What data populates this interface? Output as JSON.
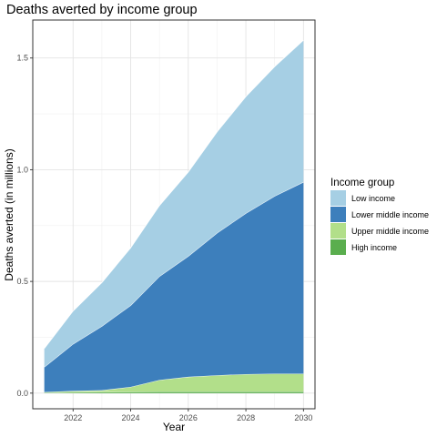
{
  "chart_data": {
    "type": "area",
    "stacked": true,
    "title": "Deaths averted by income group",
    "xlabel": "Year",
    "ylabel": "Deaths averted (in millions)",
    "x": [
      2021,
      2022,
      2023,
      2024,
      2025,
      2026,
      2027,
      2028,
      2029,
      2030
    ],
    "xlim": [
      2020.6,
      2030.4
    ],
    "ylim": [
      -0.07,
      1.67
    ],
    "x_ticks": [
      2022,
      2024,
      2026,
      2028,
      2030
    ],
    "y_ticks": [
      0.0,
      0.5,
      1.0,
      1.5
    ],
    "x_tick_labels": [
      "2022",
      "2024",
      "2026",
      "2028",
      "2030"
    ],
    "y_tick_labels": [
      "0.0",
      "0.5",
      "1.0",
      "1.5"
    ],
    "grid": true,
    "legend": {
      "title": "Income group",
      "position": "right"
    },
    "series": [
      {
        "name": "High income",
        "color": "#5aae4e",
        "values": [
          0.003,
          0.004,
          0.005,
          0.006,
          0.007,
          0.007,
          0.007,
          0.007,
          0.007,
          0.007
        ]
      },
      {
        "name": "Upper middle income",
        "color": "#b2df8a",
        "values": [
          0.002,
          0.006,
          0.008,
          0.022,
          0.052,
          0.066,
          0.073,
          0.078,
          0.08,
          0.08
        ]
      },
      {
        "name": "Lower middle income",
        "color": "#3d7fbc",
        "values": [
          0.112,
          0.21,
          0.287,
          0.365,
          0.464,
          0.54,
          0.637,
          0.72,
          0.795,
          0.858
        ]
      },
      {
        "name": "Low income",
        "color": "#a6cfe4",
        "values": [
          0.083,
          0.148,
          0.195,
          0.258,
          0.317,
          0.377,
          0.453,
          0.523,
          0.58,
          0.635
        ]
      }
    ],
    "legend_order": [
      "Low income",
      "Lower middle income",
      "Upper middle income",
      "High income"
    ]
  }
}
